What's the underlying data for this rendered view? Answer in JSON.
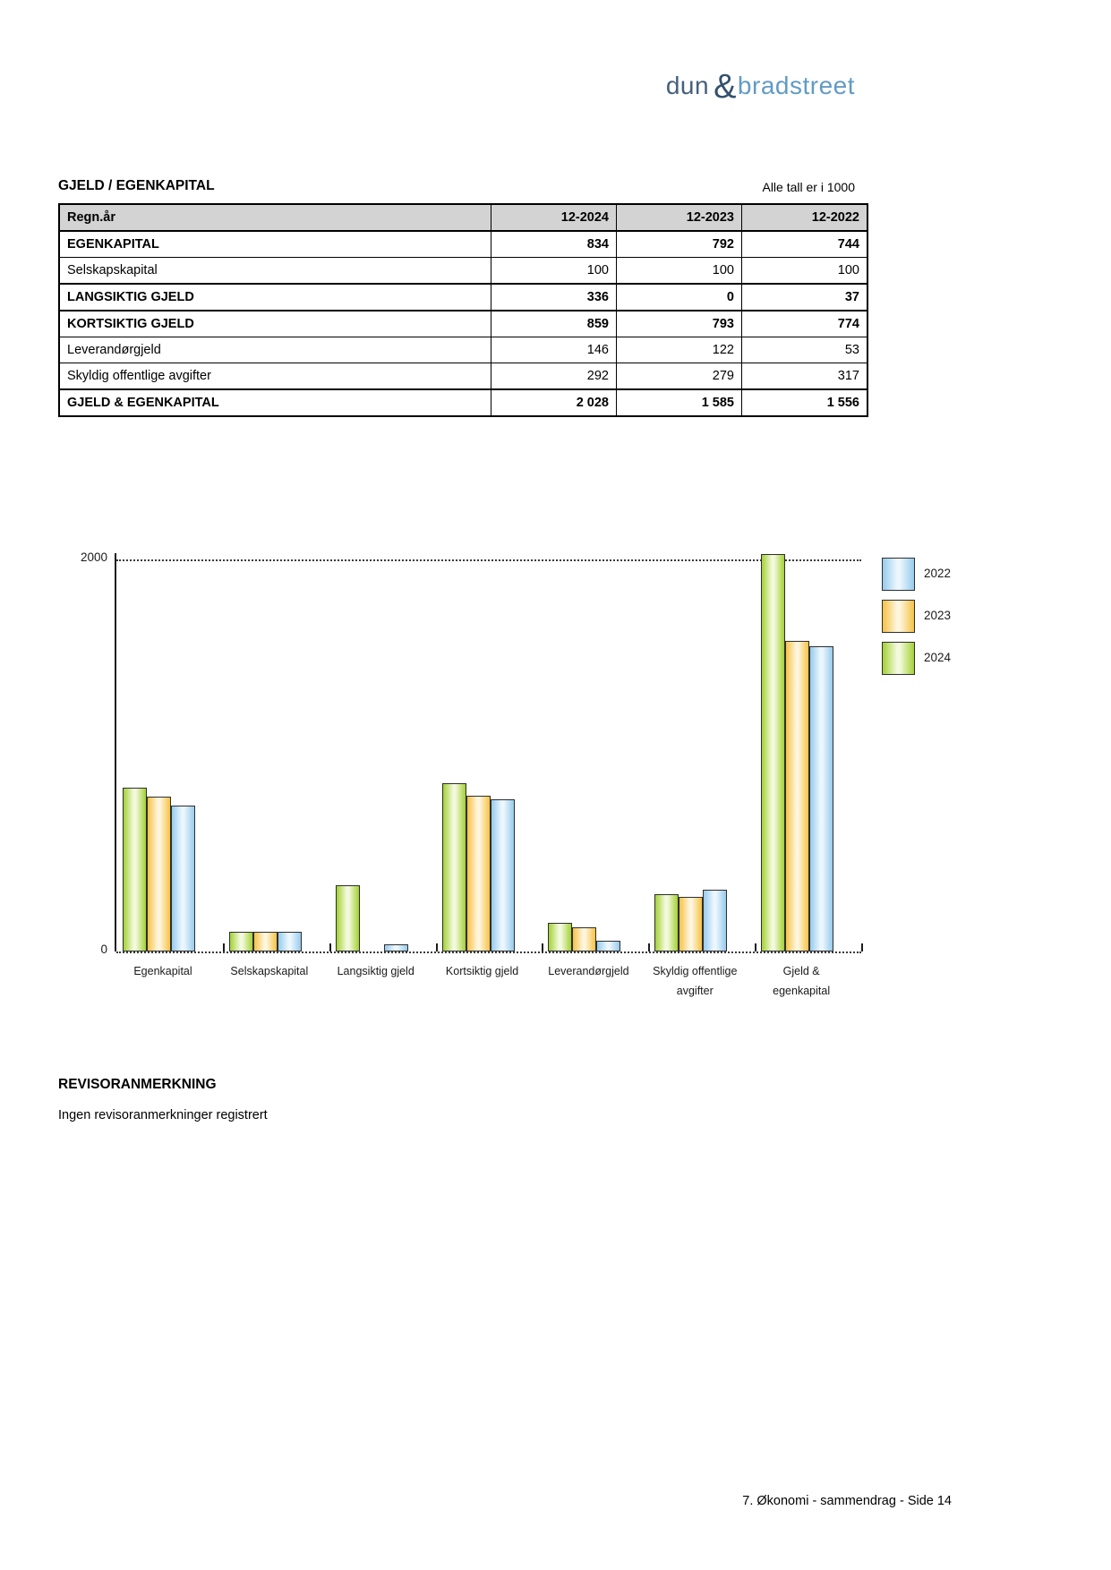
{
  "logo": {
    "part1": "dun",
    "ampersand": "&",
    "part2": "bradstreet"
  },
  "section": {
    "title": "GJELD / EGENKAPITAL",
    "note": "Alle tall er i 1000"
  },
  "table": {
    "columns": [
      "Regn.år",
      "12-2024",
      "12-2023",
      "12-2022"
    ],
    "rows": [
      {
        "label": "EGENKAPITAL",
        "bold": true,
        "values": [
          "834",
          "792",
          "744"
        ]
      },
      {
        "label": "Selskapskapital",
        "bold": false,
        "values": [
          "100",
          "100",
          "100"
        ]
      },
      {
        "label": "LANGSIKTIG GJELD",
        "bold": true,
        "values": [
          "336",
          "0",
          "37"
        ]
      },
      {
        "label": "KORTSIKTIG GJELD",
        "bold": true,
        "values": [
          "859",
          "793",
          "774"
        ]
      },
      {
        "label": "Leverandørgjeld",
        "bold": false,
        "values": [
          "146",
          "122",
          "53"
        ]
      },
      {
        "label": "Skyldig offentlige avgifter",
        "bold": false,
        "values": [
          "292",
          "279",
          "317"
        ]
      },
      {
        "label": "GJELD & EGENKAPITAL",
        "bold": true,
        "values": [
          "2 028",
          "1 585",
          "1 556"
        ]
      }
    ]
  },
  "chart_data": {
    "type": "bar",
    "categories": [
      "Egenkapital",
      "Selskapskapital",
      "Langsiktig gjeld",
      "Kortsiktig gjeld",
      "Leverandørgjeld",
      "Skyldig offentlige avgifter",
      "Gjeld & egenkapital"
    ],
    "categories_display": [
      "Egenkapital",
      "Selskapskapital",
      "Langsiktig gjeld",
      "Kortsiktig gjeld",
      "Leverandørgjeld",
      "Skyldig offentlige\navgifter",
      "Gjeld &\negenkapital"
    ],
    "series": [
      {
        "name": "2024",
        "color_edge": "#a3d134",
        "color_light": "#f2f9dc",
        "values": [
          834,
          100,
          336,
          859,
          146,
          292,
          2028
        ]
      },
      {
        "name": "2023",
        "color_edge": "#f6c243",
        "color_light": "#fdf5dd",
        "values": [
          792,
          100,
          0,
          793,
          122,
          279,
          1585
        ]
      },
      {
        "name": "2022",
        "color_edge": "#96cbed",
        "color_light": "#ebf6fd",
        "values": [
          744,
          100,
          37,
          774,
          53,
          317,
          1556
        ]
      }
    ],
    "legend": [
      "2022",
      "2023",
      "2024"
    ],
    "legend_position": "right-top",
    "ylim": [
      0,
      2000
    ],
    "yticks": [
      0,
      2000
    ],
    "grid": "dotted line at 2000 and at baseline",
    "title": "",
    "xlabel": "",
    "ylabel": ""
  },
  "revisor": {
    "heading": "REVISORANMERKNING",
    "text": "Ingen revisoranmerkninger registrert"
  },
  "page": {
    "footer": "7. Økonomi - sammendrag - Side 14"
  }
}
